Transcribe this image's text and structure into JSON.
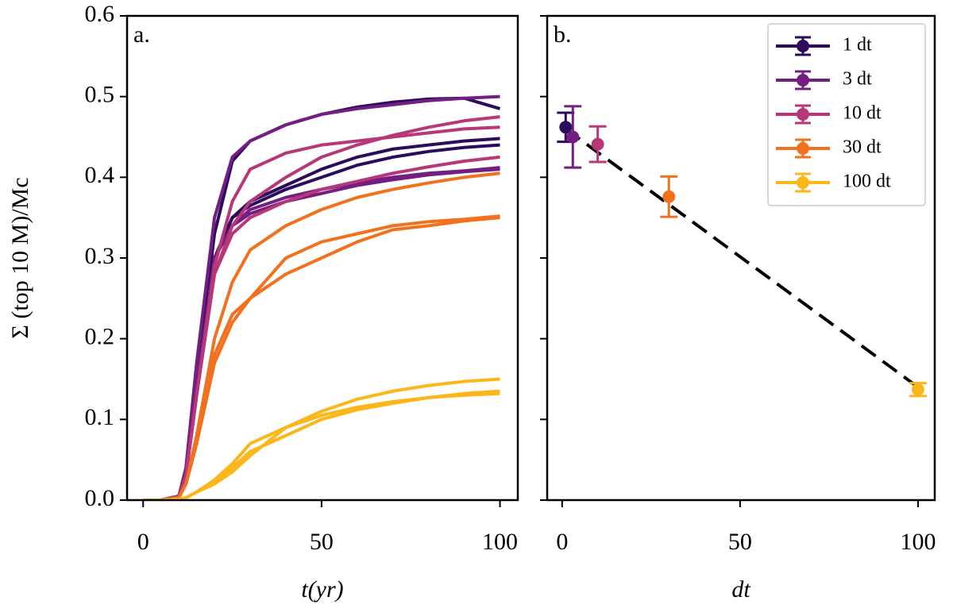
{
  "chart_data": [
    {
      "type": "line",
      "panel_label": "a.",
      "xlabel": "t(yr)",
      "ylabel": "Σ (top 10 M)/Mc",
      "x": [
        0,
        5,
        10,
        12,
        15,
        20,
        25,
        30,
        40,
        50,
        60,
        70,
        80,
        90,
        100
      ],
      "xlim": [
        -4.5,
        105
      ],
      "xticks": [
        0,
        50,
        100
      ],
      "ylim": [
        0,
        0.6
      ],
      "yticks": [
        {
          "value": 0,
          "label": "0.0"
        },
        0.1,
        0.2,
        0.3,
        0.4,
        0.5,
        0.6
      ],
      "series": [
        {
          "color": "#2c0b5c",
          "values": [
            0,
            0,
            0.005,
            0.03,
            0.15,
            0.33,
            0.42,
            0.445,
            0.465,
            0.478,
            0.487,
            0.493,
            0.497,
            0.498,
            0.485
          ]
        },
        {
          "color": "#2c0b5c",
          "values": [
            0,
            0,
            0.005,
            0.03,
            0.14,
            0.3,
            0.35,
            0.37,
            0.39,
            0.41,
            0.425,
            0.435,
            0.44,
            0.445,
            0.448
          ]
        },
        {
          "color": "#2c0b5c",
          "values": [
            0,
            0,
            0.005,
            0.03,
            0.14,
            0.3,
            0.35,
            0.365,
            0.385,
            0.4,
            0.415,
            0.425,
            0.432,
            0.437,
            0.44
          ]
        },
        {
          "color": "#721f81",
          "values": [
            0,
            0,
            0.005,
            0.04,
            0.17,
            0.35,
            0.425,
            0.445,
            0.465,
            0.478,
            0.485,
            0.49,
            0.495,
            0.498,
            0.5
          ]
        },
        {
          "color": "#721f81",
          "values": [
            0,
            0,
            0.005,
            0.03,
            0.14,
            0.3,
            0.34,
            0.355,
            0.37,
            0.38,
            0.39,
            0.397,
            0.403,
            0.407,
            0.41
          ]
        },
        {
          "color": "#721f81",
          "values": [
            0,
            0,
            0.005,
            0.03,
            0.14,
            0.3,
            0.34,
            0.36,
            0.375,
            0.385,
            0.393,
            0.4,
            0.405,
            0.408,
            0.412
          ]
        },
        {
          "color": "#b73779",
          "values": [
            0,
            0,
            0.005,
            0.03,
            0.13,
            0.28,
            0.34,
            0.37,
            0.4,
            0.425,
            0.44,
            0.452,
            0.462,
            0.47,
            0.475
          ]
        },
        {
          "color": "#b73779",
          "values": [
            0,
            0,
            0.005,
            0.03,
            0.13,
            0.29,
            0.37,
            0.41,
            0.43,
            0.44,
            0.445,
            0.45,
            0.455,
            0.46,
            0.462
          ]
        },
        {
          "color": "#b73779",
          "values": [
            0,
            0,
            0.005,
            0.03,
            0.13,
            0.28,
            0.33,
            0.35,
            0.37,
            0.385,
            0.395,
            0.405,
            0.413,
            0.42,
            0.425
          ]
        },
        {
          "color": "#f1711f",
          "values": [
            0,
            0,
            0.003,
            0.02,
            0.08,
            0.2,
            0.27,
            0.31,
            0.34,
            0.36,
            0.375,
            0.385,
            0.393,
            0.4,
            0.405
          ]
        },
        {
          "color": "#f1711f",
          "values": [
            0,
            0,
            0.003,
            0.02,
            0.07,
            0.18,
            0.23,
            0.25,
            0.28,
            0.3,
            0.32,
            0.335,
            0.34,
            0.346,
            0.35
          ]
        },
        {
          "color": "#f1711f",
          "values": [
            0,
            0,
            0.003,
            0.02,
            0.07,
            0.17,
            0.22,
            0.25,
            0.3,
            0.32,
            0.33,
            0.34,
            0.345,
            0.348,
            0.352
          ]
        },
        {
          "color": "#fbb61a",
          "values": [
            0,
            0,
            0.001,
            0.003,
            0.01,
            0.025,
            0.045,
            0.07,
            0.09,
            0.11,
            0.125,
            0.135,
            0.142,
            0.147,
            0.15
          ]
        },
        {
          "color": "#fbb61a",
          "values": [
            0,
            0,
            0.001,
            0.003,
            0.01,
            0.02,
            0.04,
            0.06,
            0.08,
            0.1,
            0.112,
            0.12,
            0.127,
            0.132,
            0.135
          ]
        },
        {
          "color": "#fbb61a",
          "values": [
            0,
            0,
            0.001,
            0.003,
            0.01,
            0.02,
            0.035,
            0.055,
            0.09,
            0.105,
            0.115,
            0.122,
            0.127,
            0.13,
            0.132
          ]
        }
      ]
    },
    {
      "type": "errorbar",
      "panel_label": "b.",
      "xlabel": "dt",
      "xlim": [
        -4.2,
        104.7
      ],
      "xticks": [
        0,
        50,
        100
      ],
      "ylim": [
        0,
        0.6
      ],
      "yticks": [
        0,
        0.1,
        0.2,
        0.3,
        0.4,
        0.5,
        0.6
      ],
      "ytick_labels": false,
      "legend": "upper right",
      "fit": {
        "x": [
          1,
          100
        ],
        "values": [
          0.46,
          0.14
        ],
        "color": "#000000",
        "linestyle": "dashed"
      },
      "series": [
        {
          "name": "1 dt",
          "color": "#2c0b5c",
          "x": [
            1
          ],
          "values": [
            0.462
          ],
          "errors": [
            0.018
          ]
        },
        {
          "name": "3 dt",
          "color": "#721f81",
          "x": [
            3
          ],
          "values": [
            0.45
          ],
          "errors": [
            0.038
          ]
        },
        {
          "name": "10 dt",
          "color": "#b73779",
          "x": [
            10
          ],
          "values": [
            0.441
          ],
          "errors": [
            0.022
          ]
        },
        {
          "name": "30 dt",
          "color": "#f1711f",
          "x": [
            30
          ],
          "values": [
            0.376
          ],
          "errors": [
            0.025
          ]
        },
        {
          "name": "100 dt",
          "color": "#fbb61a",
          "x": [
            100
          ],
          "values": [
            0.137
          ],
          "errors": [
            0.008
          ]
        }
      ]
    }
  ]
}
